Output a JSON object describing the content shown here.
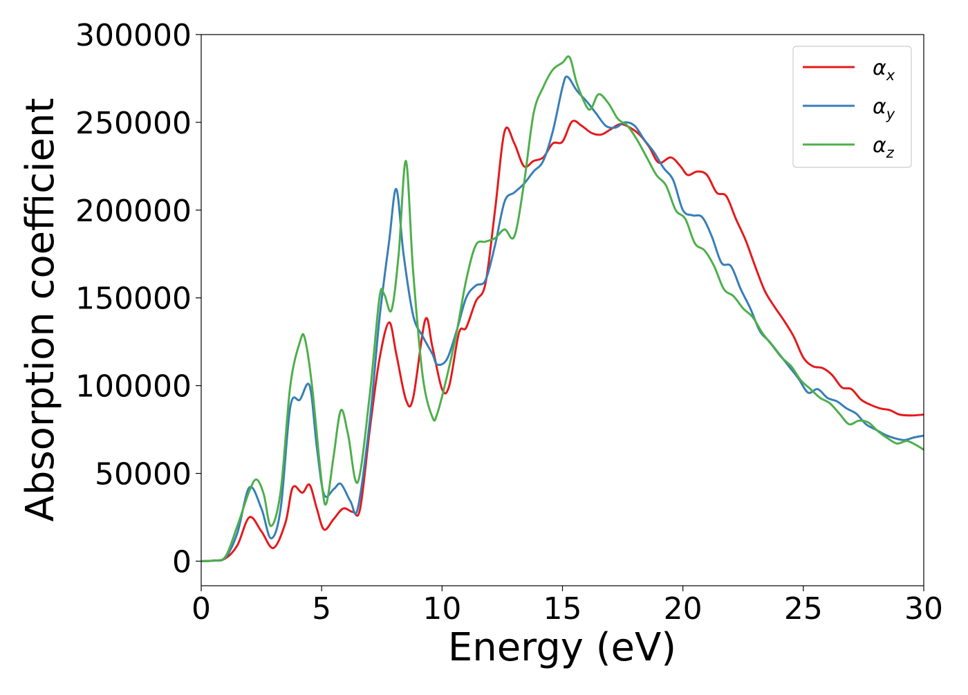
{
  "chart_data": {
    "type": "line",
    "title": "",
    "xlabel": "Energy (eV)",
    "ylabel": "Absorption coefficient",
    "xlim": [
      0,
      30
    ],
    "ylim": [
      -14000,
      300000
    ],
    "xticks": [
      0,
      5,
      10,
      15,
      20,
      25,
      30
    ],
    "yticks": [
      0,
      50000,
      100000,
      150000,
      200000,
      250000,
      300000
    ],
    "grid": false,
    "legend_position": "top-right",
    "series": [
      {
        "name": "α",
        "name_subscript": "x",
        "color": "#e41a1c",
        "points": [
          [
            0,
            0
          ],
          [
            0.5,
            300
          ],
          [
            1,
            1500
          ],
          [
            1.5,
            9000
          ],
          [
            2,
            25000
          ],
          [
            2.5,
            17000
          ],
          [
            3,
            7500
          ],
          [
            3.5,
            22000
          ],
          [
            3.8,
            42000
          ],
          [
            4.2,
            39000
          ],
          [
            4.5,
            43500
          ],
          [
            4.8,
            30000
          ],
          [
            5.1,
            18000
          ],
          [
            5.5,
            24000
          ],
          [
            5.9,
            30000
          ],
          [
            6.3,
            28000
          ],
          [
            6.6,
            30000
          ],
          [
            7,
            75000
          ],
          [
            7.4,
            115000
          ],
          [
            7.8,
            136000
          ],
          [
            8.1,
            118000
          ],
          [
            8.5,
            92000
          ],
          [
            8.8,
            93000
          ],
          [
            9.3,
            137500
          ],
          [
            9.6,
            122000
          ],
          [
            10,
            98000
          ],
          [
            10.3,
            100000
          ],
          [
            10.7,
            130000
          ],
          [
            11,
            133000
          ],
          [
            11.4,
            148000
          ],
          [
            11.8,
            158000
          ],
          [
            12.2,
            200000
          ],
          [
            12.6,
            245000
          ],
          [
            13,
            238000
          ],
          [
            13.4,
            225000
          ],
          [
            13.8,
            228000
          ],
          [
            14.2,
            230000
          ],
          [
            14.6,
            238000
          ],
          [
            15,
            239000
          ],
          [
            15.4,
            250500
          ],
          [
            15.8,
            248000
          ],
          [
            16.2,
            244000
          ],
          [
            16.6,
            243000
          ],
          [
            17,
            246000
          ],
          [
            17.4,
            249000
          ],
          [
            17.8,
            247000
          ],
          [
            18.2,
            243000
          ],
          [
            18.6,
            236000
          ],
          [
            19,
            227000
          ],
          [
            19.5,
            230000
          ],
          [
            19.9,
            225000
          ],
          [
            20.2,
            220000
          ],
          [
            20.6,
            222000
          ],
          [
            21,
            220000
          ],
          [
            21.4,
            210000
          ],
          [
            21.8,
            208000
          ],
          [
            22.2,
            195000
          ],
          [
            22.6,
            183000
          ],
          [
            23,
            168000
          ],
          [
            23.4,
            154000
          ],
          [
            23.8,
            145000
          ],
          [
            24.2,
            137000
          ],
          [
            24.6,
            128000
          ],
          [
            25,
            116000
          ],
          [
            25.4,
            111000
          ],
          [
            25.8,
            110000
          ],
          [
            26.2,
            106000
          ],
          [
            26.6,
            99000
          ],
          [
            27,
            98000
          ],
          [
            27.4,
            92000
          ],
          [
            27.8,
            89000
          ],
          [
            28.2,
            87000
          ],
          [
            28.6,
            86000
          ],
          [
            29,
            83500
          ],
          [
            29.5,
            83000
          ],
          [
            30,
            83500
          ]
        ]
      },
      {
        "name": "α",
        "name_subscript": "y",
        "color": "#377eb8",
        "points": [
          [
            0,
            0
          ],
          [
            0.5,
            300
          ],
          [
            1,
            2000
          ],
          [
            1.5,
            16000
          ],
          [
            2,
            42000
          ],
          [
            2.5,
            30000
          ],
          [
            2.9,
            13000
          ],
          [
            3.3,
            30000
          ],
          [
            3.7,
            88000
          ],
          [
            4.1,
            92000
          ],
          [
            4.5,
            100000
          ],
          [
            4.8,
            65000
          ],
          [
            5.1,
            38000
          ],
          [
            5.5,
            41000
          ],
          [
            5.8,
            44000
          ],
          [
            6.2,
            34000
          ],
          [
            6.5,
            30000
          ],
          [
            7,
            80000
          ],
          [
            7.4,
            138000
          ],
          [
            7.8,
            182000
          ],
          [
            8.1,
            212000
          ],
          [
            8.4,
            175000
          ],
          [
            8.8,
            140000
          ],
          [
            9.2,
            128000
          ],
          [
            9.6,
            118000
          ],
          [
            9.8,
            112000
          ],
          [
            10.2,
            115000
          ],
          [
            10.6,
            131000
          ],
          [
            11,
            150000
          ],
          [
            11.4,
            157000
          ],
          [
            11.8,
            160000
          ],
          [
            12.2,
            180000
          ],
          [
            12.6,
            205000
          ],
          [
            13,
            210000
          ],
          [
            13.4,
            215000
          ],
          [
            13.8,
            222000
          ],
          [
            14.2,
            228000
          ],
          [
            14.6,
            245000
          ],
          [
            15,
            270000
          ],
          [
            15.2,
            276000
          ],
          [
            15.6,
            268000
          ],
          [
            16,
            262000
          ],
          [
            16.4,
            255000
          ],
          [
            16.8,
            248000
          ],
          [
            17.2,
            247000
          ],
          [
            17.6,
            250000
          ],
          [
            18,
            248000
          ],
          [
            18.4,
            240000
          ],
          [
            18.8,
            233000
          ],
          [
            19.2,
            224000
          ],
          [
            19.6,
            217000
          ],
          [
            20,
            200000
          ],
          [
            20.4,
            197000
          ],
          [
            20.8,
            196000
          ],
          [
            21.2,
            185000
          ],
          [
            21.6,
            170000
          ],
          [
            22,
            168000
          ],
          [
            22.4,
            155000
          ],
          [
            22.8,
            144000
          ],
          [
            23.2,
            131000
          ],
          [
            23.6,
            125000
          ],
          [
            24,
            118000
          ],
          [
            24.4,
            111000
          ],
          [
            24.8,
            104000
          ],
          [
            25.2,
            96000
          ],
          [
            25.6,
            98000
          ],
          [
            26,
            93000
          ],
          [
            26.4,
            91000
          ],
          [
            26.8,
            87000
          ],
          [
            27.2,
            84000
          ],
          [
            27.6,
            78000
          ],
          [
            28,
            75000
          ],
          [
            28.4,
            72000
          ],
          [
            28.8,
            70000
          ],
          [
            29.2,
            69000
          ],
          [
            29.6,
            70500
          ],
          [
            30,
            71500
          ]
        ]
      },
      {
        "name": "α",
        "name_subscript": "z",
        "color": "#4daf4a",
        "points": [
          [
            0,
            0
          ],
          [
            0.5,
            400
          ],
          [
            1,
            2500
          ],
          [
            1.5,
            20000
          ],
          [
            2,
            40000
          ],
          [
            2.3,
            46500
          ],
          [
            2.6,
            38000
          ],
          [
            2.9,
            20000
          ],
          [
            3.3,
            40000
          ],
          [
            3.7,
            100000
          ],
          [
            4.1,
            125000
          ],
          [
            4.3,
            127000
          ],
          [
            4.6,
            100000
          ],
          [
            5,
            45000
          ],
          [
            5.2,
            33000
          ],
          [
            5.5,
            60000
          ],
          [
            5.8,
            86000
          ],
          [
            6.1,
            72000
          ],
          [
            6.5,
            45000
          ],
          [
            7,
            95000
          ],
          [
            7.4,
            150000
          ],
          [
            7.6,
            152000
          ],
          [
            7.9,
            143000
          ],
          [
            8.2,
            175000
          ],
          [
            8.5,
            228000
          ],
          [
            8.8,
            165000
          ],
          [
            9.2,
            105000
          ],
          [
            9.6,
            82000
          ],
          [
            9.8,
            84000
          ],
          [
            10.2,
            105000
          ],
          [
            10.6,
            130000
          ],
          [
            11,
            160000
          ],
          [
            11.4,
            180000
          ],
          [
            11.8,
            182000
          ],
          [
            12.2,
            184000
          ],
          [
            12.6,
            189000
          ],
          [
            13,
            185000
          ],
          [
            13.4,
            215000
          ],
          [
            13.8,
            255000
          ],
          [
            14.2,
            270000
          ],
          [
            14.6,
            280000
          ],
          [
            15,
            284000
          ],
          [
            15.3,
            287000
          ],
          [
            15.6,
            272000
          ],
          [
            16,
            259000
          ],
          [
            16.2,
            258000
          ],
          [
            16.5,
            266000
          ],
          [
            16.9,
            261000
          ],
          [
            17.3,
            252000
          ],
          [
            17.7,
            248000
          ],
          [
            18.1,
            240000
          ],
          [
            18.5,
            230000
          ],
          [
            18.9,
            220000
          ],
          [
            19.3,
            214000
          ],
          [
            19.7,
            200000
          ],
          [
            20.1,
            195000
          ],
          [
            20.5,
            181000
          ],
          [
            20.9,
            177000
          ],
          [
            21.3,
            168000
          ],
          [
            21.7,
            155000
          ],
          [
            22.1,
            151000
          ],
          [
            22.5,
            144000
          ],
          [
            22.9,
            139000
          ],
          [
            23.3,
            130000
          ],
          [
            23.7,
            123000
          ],
          [
            24.1,
            116000
          ],
          [
            24.5,
            111000
          ],
          [
            24.9,
            103000
          ],
          [
            25.3,
            98000
          ],
          [
            25.7,
            93000
          ],
          [
            26.1,
            90000
          ],
          [
            26.5,
            84000
          ],
          [
            26.9,
            78000
          ],
          [
            27.3,
            80000
          ],
          [
            27.7,
            79000
          ],
          [
            28.1,
            74000
          ],
          [
            28.5,
            70000
          ],
          [
            28.9,
            67000
          ],
          [
            29.3,
            68500
          ],
          [
            29.7,
            66000
          ],
          [
            30,
            63500
          ]
        ]
      }
    ]
  }
}
